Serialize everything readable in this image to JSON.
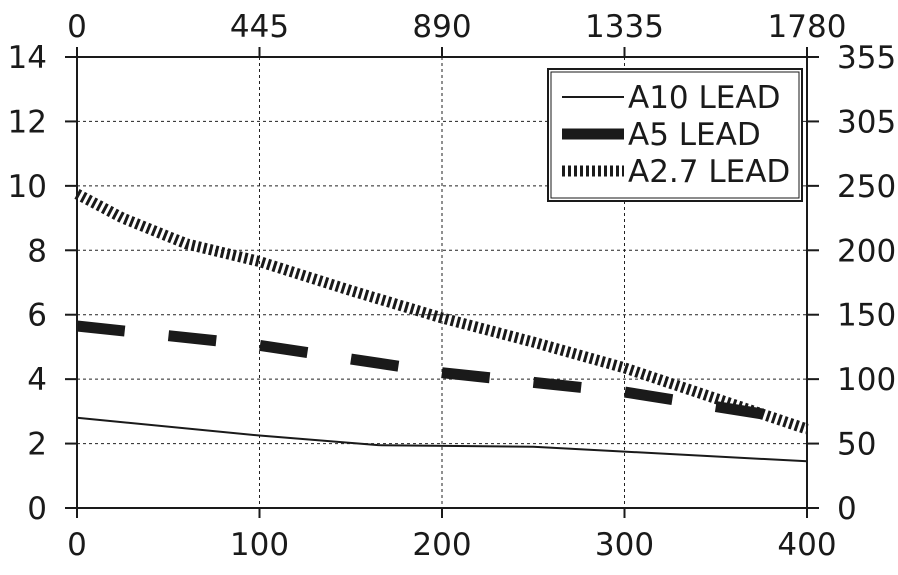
{
  "chart_data": {
    "type": "line",
    "title": "",
    "xlabel": "",
    "ylabel": "",
    "grid": true,
    "legend_position": "top-right",
    "x_bottom": {
      "lim": [
        0,
        400
      ],
      "ticks": [
        0,
        100,
        200,
        300,
        400
      ],
      "tick_labels": [
        "0",
        "100",
        "200",
        "300",
        "400"
      ]
    },
    "x_top": {
      "lim": [
        0,
        1780
      ],
      "ticks": [
        0,
        445,
        890,
        1335,
        1780
      ],
      "tick_labels": [
        "0",
        "445",
        "890",
        "1335",
        "1780"
      ]
    },
    "y_left": {
      "lim": [
        0,
        14
      ],
      "ticks": [
        0,
        2,
        4,
        6,
        8,
        10,
        12,
        14
      ],
      "tick_labels": [
        "0",
        "2",
        "4",
        "6",
        "8",
        "10",
        "12",
        "14"
      ]
    },
    "y_right": {
      "ticks": [
        0,
        50,
        100,
        150,
        200,
        250,
        305,
        355
      ],
      "tick_labels": [
        "0",
        "50",
        "100",
        "150",
        "200",
        "250",
        "305",
        "355"
      ]
    },
    "series": [
      {
        "name": "A10 LEAD",
        "style": "thin-solid",
        "color": "#1a1a1a",
        "x": [
          0,
          100,
          165,
          250,
          300,
          400
        ],
        "y": [
          2.8,
          2.25,
          1.95,
          1.9,
          1.75,
          1.45
        ]
      },
      {
        "name": "A5 LEAD",
        "style": "thick-dashed",
        "color": "#1a1a1a",
        "x": [
          0,
          100,
          200,
          300,
          400
        ],
        "y": [
          5.65,
          5.05,
          4.2,
          3.6,
          2.7
        ]
      },
      {
        "name": "A2.7 LEAD",
        "style": "thick-dotted",
        "color": "#1a1a1a",
        "x": [
          0,
          25,
          60,
          100,
          150,
          200,
          250,
          300,
          350,
          400
        ],
        "y": [
          9.75,
          9.0,
          8.2,
          7.65,
          6.75,
          5.9,
          5.15,
          4.35,
          3.4,
          2.45
        ]
      }
    ]
  }
}
